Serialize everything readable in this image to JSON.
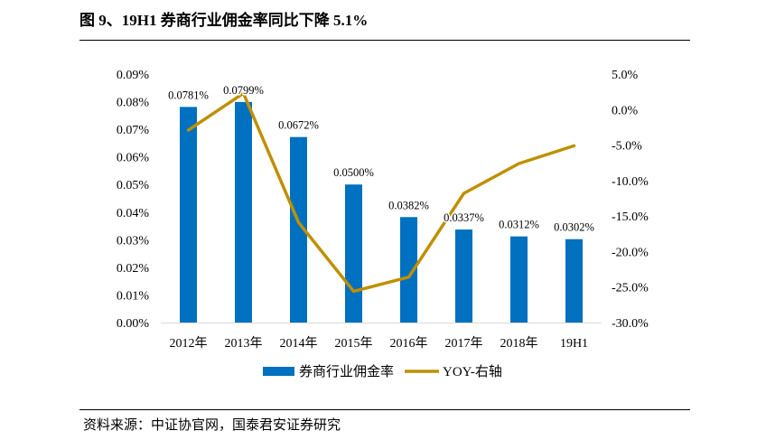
{
  "title": "图 9、19H1 券商行业佣金率同比下降 5.1%",
  "source": "资料来源：中证协官网，国泰君安证券研究",
  "colors": {
    "bar": "#0070C0",
    "line": "#BF9000",
    "axis": "#D9D9D9"
  },
  "chart_data": {
    "type": "bar",
    "categories": [
      "2012年",
      "2013年",
      "2014年",
      "2015年",
      "2016年",
      "2017年",
      "2018年",
      "19H1"
    ],
    "series": [
      {
        "name": "券商行业佣金率",
        "type": "bar",
        "axis": "left",
        "values": [
          0.0781,
          0.0799,
          0.0672,
          0.05,
          0.0382,
          0.0337,
          0.0312,
          0.0302
        ],
        "labels": [
          "0.0781%",
          "0.0799%",
          "0.0672%",
          "0.0500%",
          "0.0382%",
          "0.0337%",
          "0.0312%",
          "0.0302%"
        ]
      },
      {
        "name": "YOY-右轴",
        "type": "line",
        "axis": "right",
        "values": [
          -2.9,
          2.3,
          -15.9,
          -25.6,
          -23.6,
          -11.8,
          -7.6,
          -5.1
        ]
      }
    ],
    "y_left": {
      "min": 0,
      "max": 0.09,
      "ticks": [
        "0.00%",
        "0.01%",
        "0.02%",
        "0.03%",
        "0.04%",
        "0.05%",
        "0.06%",
        "0.07%",
        "0.08%",
        "0.09%"
      ]
    },
    "y_right": {
      "min": -30,
      "max": 5,
      "ticks": [
        "-30.0%",
        "-25.0%",
        "-20.0%",
        "-15.0%",
        "-10.0%",
        "-5.0%",
        "0.0%",
        "5.0%"
      ]
    },
    "legend": [
      "券商行业佣金率",
      "YOY-右轴"
    ],
    "legend_position": "bottom"
  }
}
